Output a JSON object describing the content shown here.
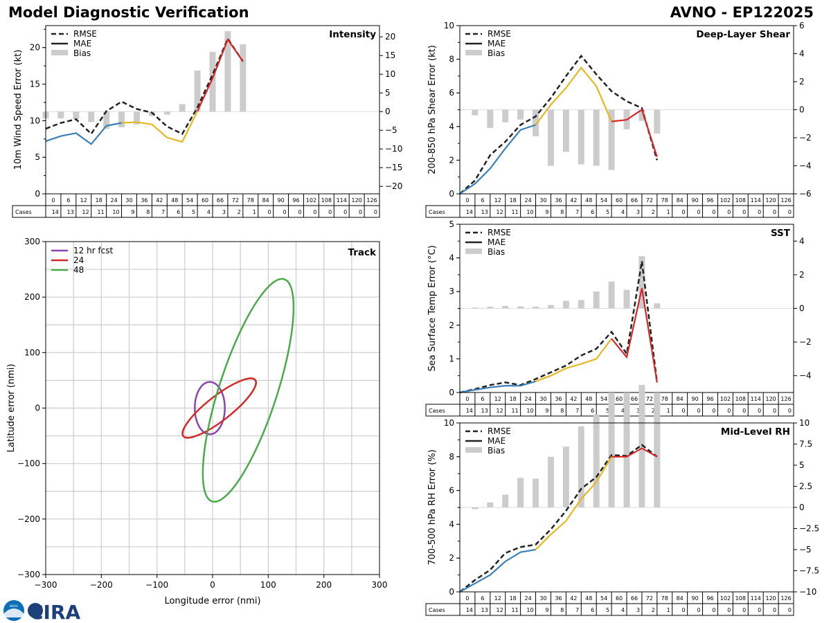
{
  "header": {
    "left_title": "Model Diagnostic Verification",
    "right_title": "AVNO - EP122025"
  },
  "logo": {
    "noaa_text": "NOAA",
    "cira_text": "CIRA"
  },
  "legend_labels": {
    "rmse": "RMSE",
    "mae": "MAE",
    "bias": "Bias"
  },
  "colors": {
    "rmse": "#222222",
    "seg1": "#3a7fb5",
    "seg2": "#e6b820",
    "seg3": "#d62728",
    "bias": "#cccccc",
    "grid": "#cccccc",
    "track12": "#8e44ad",
    "track24": "#d62728",
    "track48": "#4aaa4a"
  },
  "table": {
    "hours_header": "0",
    "cases_label": "Cases",
    "hours": [
      0,
      6,
      12,
      18,
      24,
      30,
      36,
      42,
      48,
      54,
      60,
      66,
      72,
      78,
      84,
      90,
      96,
      102,
      108,
      114,
      120,
      126
    ],
    "cases": [
      14,
      13,
      12,
      11,
      10,
      9,
      8,
      7,
      6,
      5,
      4,
      3,
      2,
      1,
      0,
      0,
      0,
      0,
      0,
      0,
      0,
      0
    ]
  },
  "chart_data": [
    {
      "id": "intensity",
      "type": "line",
      "title": "Intensity",
      "ylabel": "10m Wind Speed Error (kt)",
      "x": [
        0,
        6,
        12,
        18,
        24,
        30,
        36,
        42,
        48,
        54,
        60,
        66,
        72,
        78
      ],
      "ylim": [
        0,
        23
      ],
      "yticks": [
        0,
        5,
        10,
        15,
        20
      ],
      "y2lim": [
        -22,
        23
      ],
      "y2ticks": [
        -20,
        -15,
        -10,
        -5,
        0,
        5,
        10,
        15,
        20
      ],
      "rmse": [
        8.9,
        9.7,
        10.2,
        8.2,
        11.3,
        12.6,
        11.6,
        11.1,
        9.2,
        8.2,
        11.8,
        16.3,
        21.2,
        18.1
      ],
      "mae": [
        7.2,
        7.9,
        8.3,
        6.8,
        9.3,
        9.7,
        9.8,
        9.5,
        7.7,
        7.1,
        11.3,
        15.8,
        21.1,
        18.1
      ],
      "bias": [
        -1.8,
        -1.8,
        -2.0,
        -2.8,
        -4.6,
        -4.2,
        -3.4,
        -1.2,
        -0.8,
        2.0,
        11.0,
        16.0,
        21.5,
        18.0
      ]
    },
    {
      "id": "shear",
      "type": "line",
      "title": "Deep-Layer Shear",
      "ylabel": "200-850 hPa Shear Error (kt)",
      "x": [
        0,
        6,
        12,
        18,
        24,
        30,
        36,
        42,
        48,
        54,
        60,
        66,
        72,
        78
      ],
      "ylim": [
        0,
        10
      ],
      "yticks": [
        0,
        2,
        4,
        6,
        8,
        10
      ],
      "y2lim": [
        -6,
        6
      ],
      "y2ticks": [
        -6,
        -4,
        -2,
        0,
        2,
        4,
        6
      ],
      "rmse": [
        0.0,
        0.8,
        2.3,
        3.1,
        4.1,
        4.6,
        5.7,
        7.0,
        8.2,
        7.1,
        6.1,
        5.5,
        5.1,
        2.0
      ],
      "mae": [
        0.0,
        0.6,
        1.5,
        2.7,
        3.8,
        4.1,
        5.3,
        6.3,
        7.5,
        6.4,
        4.3,
        4.4,
        5.0,
        2.2
      ],
      "bias": [
        0.0,
        -0.4,
        -1.3,
        -0.9,
        -0.7,
        -1.9,
        -4.0,
        -3.0,
        -3.9,
        -4.0,
        -4.3,
        -1.4,
        -0.8,
        -1.7
      ]
    },
    {
      "id": "sst",
      "type": "line",
      "title": "SST",
      "ylabel": "Sea Surface Temp Error (°C)",
      "x": [
        0,
        6,
        12,
        18,
        24,
        30,
        36,
        42,
        48,
        54,
        60,
        66,
        72,
        78
      ],
      "ylim": [
        0,
        5
      ],
      "yticks": [
        0,
        1,
        2,
        3,
        4,
        5
      ],
      "y2lim": [
        -5,
        5
      ],
      "y2ticks": [
        -4,
        -2,
        0,
        2,
        4
      ],
      "rmse": [
        0.0,
        0.1,
        0.22,
        0.3,
        0.22,
        0.4,
        0.6,
        0.8,
        1.1,
        1.3,
        1.8,
        1.15,
        3.9,
        0.3
      ],
      "mae": [
        0.0,
        0.08,
        0.15,
        0.2,
        0.2,
        0.33,
        0.5,
        0.72,
        0.85,
        1.0,
        1.6,
        1.05,
        3.1,
        0.3
      ],
      "bias": [
        0.0,
        0.05,
        0.1,
        0.15,
        0.12,
        0.1,
        0.2,
        0.45,
        0.5,
        1.0,
        1.6,
        1.1,
        3.1,
        0.3
      ]
    },
    {
      "id": "rh",
      "type": "line",
      "title": "Mid-Level RH",
      "ylabel": "700-500 hPa RH Error (%)",
      "x": [
        0,
        6,
        12,
        18,
        24,
        30,
        36,
        42,
        48,
        54,
        60,
        66,
        72,
        78
      ],
      "ylim": [
        0,
        10
      ],
      "yticks": [
        0,
        2,
        4,
        6,
        8,
        10
      ],
      "y2lim": [
        -10,
        10
      ],
      "y2ticks": [
        -10.0,
        -7.5,
        -5.0,
        -2.5,
        0.0,
        2.5,
        5.0,
        7.5,
        10.0
      ],
      "rmse": [
        0.0,
        0.7,
        1.3,
        2.3,
        2.65,
        2.8,
        3.7,
        4.8,
        6.1,
        6.8,
        8.1,
        8.05,
        8.7,
        8.0
      ],
      "mae": [
        0.0,
        0.5,
        1.0,
        1.8,
        2.35,
        2.5,
        3.4,
        4.2,
        5.5,
        6.5,
        8.0,
        8.0,
        8.5,
        8.0
      ],
      "bias": [
        0.0,
        -0.2,
        0.6,
        1.5,
        3.5,
        3.4,
        6.0,
        7.2,
        9.6,
        11.0,
        13.6,
        13.6,
        14.5,
        13.6
      ]
    },
    {
      "id": "track",
      "type": "scatter",
      "title": "Track",
      "xlabel": "Longitude error (nmi)",
      "ylabel": "Latitude error (nmi)",
      "xlim": [
        -300,
        300
      ],
      "ylim": [
        -300,
        300
      ],
      "ticks": [
        -300,
        -200,
        -100,
        0,
        100,
        200,
        300
      ],
      "ellipses": [
        {
          "label": "12 hr fcst",
          "cx": -5,
          "cy": 0,
          "a": 27,
          "b": 47,
          "angle_deg": 0
        },
        {
          "label": "24",
          "cx": 12,
          "cy": 0,
          "a": 82,
          "b": 22,
          "angle_deg": 38
        },
        {
          "label": "48",
          "cx": 64,
          "cy": 32,
          "a": 210,
          "b": 52,
          "angle_deg": 72
        }
      ]
    }
  ]
}
